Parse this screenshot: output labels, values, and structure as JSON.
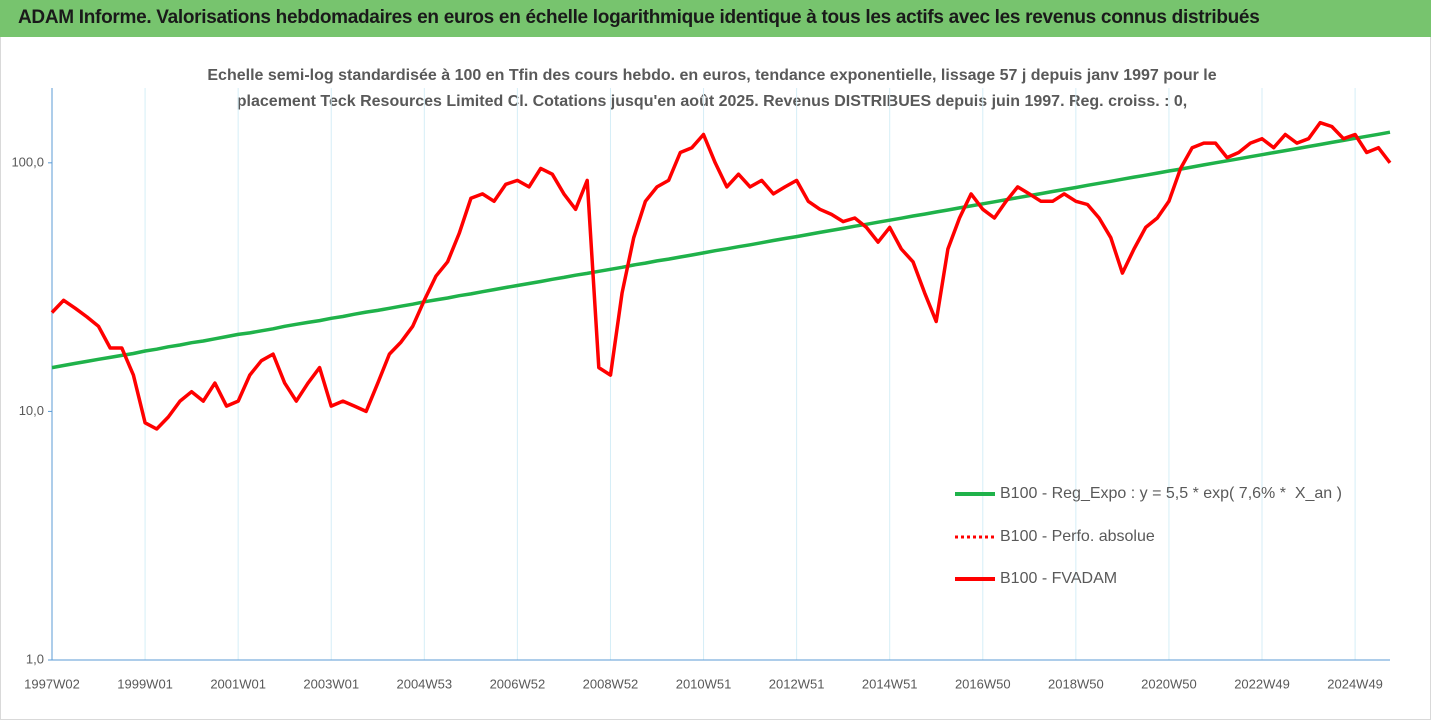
{
  "chart_data": {
    "type": "line",
    "title": "ADAM Informe. Valorisations hebdomadaires en euros en échelle logarithmique identique à tous les actifs avec les revenus connus distribués",
    "subtitle": [
      "Echelle semi-log standardisée à 100 en Tfin des cours hebdo. en euros, tendance exponentielle, lissage 57 j depuis janv 1997 pour le",
      "placement Teck Resources Limited Cl. Cotations jusqu'en août 2025. Revenus DISTRIBUES depuis juin 1997. Reg. croiss. : 0,"
    ],
    "log_scale": true,
    "ylim": [
      1,
      200
    ],
    "yticks": [
      {
        "value": 1,
        "label": "1,0"
      },
      {
        "value": 10,
        "label": "10,0"
      },
      {
        "value": 100,
        "label": "100,0"
      }
    ],
    "legend": "right",
    "categories": [
      "1997W02",
      null,
      null,
      null,
      null,
      null,
      null,
      null,
      "1999W01",
      null,
      null,
      null,
      null,
      null,
      null,
      null,
      "2001W01",
      null,
      null,
      null,
      null,
      null,
      null,
      null,
      "2003W01",
      null,
      null,
      null,
      null,
      null,
      null,
      null,
      "2004W53",
      null,
      null,
      null,
      null,
      null,
      null,
      null,
      "2006W52",
      null,
      null,
      null,
      null,
      null,
      null,
      null,
      "2008W52",
      null,
      null,
      null,
      null,
      null,
      null,
      null,
      "2010W51",
      null,
      null,
      null,
      null,
      null,
      null,
      null,
      "2012W51",
      null,
      null,
      null,
      null,
      null,
      null,
      null,
      "2014W51",
      null,
      null,
      null,
      null,
      null,
      null,
      null,
      "2016W50",
      null,
      null,
      null,
      null,
      null,
      null,
      null,
      "2018W50",
      null,
      null,
      null,
      null,
      null,
      null,
      null,
      "2020W50",
      null,
      null,
      null,
      null,
      null,
      null,
      null,
      "2022W49",
      null,
      null,
      null,
      null,
      null,
      null,
      null,
      "2024W49",
      null,
      null,
      null
    ],
    "series": [
      {
        "name": "B100 - Reg_Expo : y = 5,5 * exp( 7,6% *  X_an )",
        "color": "#1fb24a",
        "style": "solid",
        "values": [
          15.0,
          15.3,
          15.6,
          15.9,
          16.2,
          16.5,
          16.8,
          17.1,
          17.5,
          17.8,
          18.2,
          18.5,
          18.9,
          19.2,
          19.6,
          20.0,
          20.4,
          20.7,
          21.1,
          21.5,
          22.0,
          22.4,
          22.8,
          23.2,
          23.7,
          24.1,
          24.6,
          25.1,
          25.5,
          26.0,
          26.5,
          27.0,
          27.6,
          28.1,
          28.6,
          29.2,
          29.7,
          30.3,
          30.9,
          31.5,
          32.1,
          32.7,
          33.3,
          34.0,
          34.6,
          35.3,
          35.9,
          36.6,
          37.3,
          38.0,
          38.8,
          39.5,
          40.3,
          41.0,
          41.8,
          42.6,
          43.4,
          44.3,
          45.1,
          46.0,
          46.8,
          47.7,
          48.7,
          49.6,
          50.5,
          51.5,
          52.5,
          53.5,
          54.5,
          55.6,
          56.6,
          57.7,
          58.8,
          59.9,
          61.1,
          62.2,
          63.4,
          64.6,
          65.9,
          67.1,
          68.4,
          69.7,
          71.1,
          72.4,
          73.8,
          75.2,
          76.7,
          78.1,
          79.6,
          81.2,
          82.7,
          84.3,
          85.9,
          87.6,
          89.2,
          90.9,
          92.7,
          94.4,
          96.2,
          98.1,
          100.0,
          101.9,
          103.8,
          105.8,
          107.8,
          109.9,
          112.0,
          114.1,
          116.3,
          118.5,
          120.8,
          123.1,
          125.5,
          127.9,
          130.3,
          132.8
        ]
      },
      {
        "name": "B100 - Perfo. absolue",
        "color": "#ff0000",
        "style": "dotted",
        "values": [
          25,
          28,
          26,
          24,
          22,
          18,
          18,
          14,
          9,
          8.5,
          9.5,
          11,
          12,
          11,
          13,
          10.5,
          11,
          14,
          16,
          17,
          13,
          11,
          13,
          15,
          10.5,
          11,
          10.5,
          10,
          13,
          17,
          19,
          22,
          28,
          35,
          40,
          52,
          72,
          75,
          70,
          82,
          85,
          80,
          95,
          90,
          75,
          65,
          85,
          15,
          14,
          30,
          50,
          70,
          80,
          85,
          110,
          115,
          130,
          100,
          80,
          90,
          80,
          85,
          75,
          80,
          85,
          70,
          65,
          62,
          58,
          60,
          55,
          48,
          55,
          45,
          40,
          30,
          23,
          45,
          60,
          75,
          65,
          60,
          70,
          80,
          75,
          70,
          70,
          75,
          70,
          68,
          60,
          50,
          36,
          45,
          55,
          60,
          70,
          95,
          115,
          120,
          120,
          105,
          110,
          120,
          125,
          115,
          130,
          120,
          125,
          145,
          140,
          125,
          130,
          110,
          115,
          100
        ]
      },
      {
        "name": "B100 - FVADAM",
        "color": "#ff0000",
        "style": "solid",
        "values": [
          25,
          28,
          26,
          24,
          22,
          18,
          18,
          14,
          9,
          8.5,
          9.5,
          11,
          12,
          11,
          13,
          10.5,
          11,
          14,
          16,
          17,
          13,
          11,
          13,
          15,
          10.5,
          11,
          10.5,
          10,
          13,
          17,
          19,
          22,
          28,
          35,
          40,
          52,
          72,
          75,
          70,
          82,
          85,
          80,
          95,
          90,
          75,
          65,
          85,
          15,
          14,
          30,
          50,
          70,
          80,
          85,
          110,
          115,
          130,
          100,
          80,
          90,
          80,
          85,
          75,
          80,
          85,
          70,
          65,
          62,
          58,
          60,
          55,
          48,
          55,
          45,
          40,
          30,
          23,
          45,
          60,
          75,
          65,
          60,
          70,
          80,
          75,
          70,
          70,
          75,
          70,
          68,
          60,
          50,
          36,
          45,
          55,
          60,
          70,
          95,
          115,
          120,
          120,
          105,
          110,
          120,
          125,
          115,
          130,
          120,
          125,
          145,
          140,
          125,
          130,
          110,
          115,
          100
        ]
      }
    ]
  }
}
